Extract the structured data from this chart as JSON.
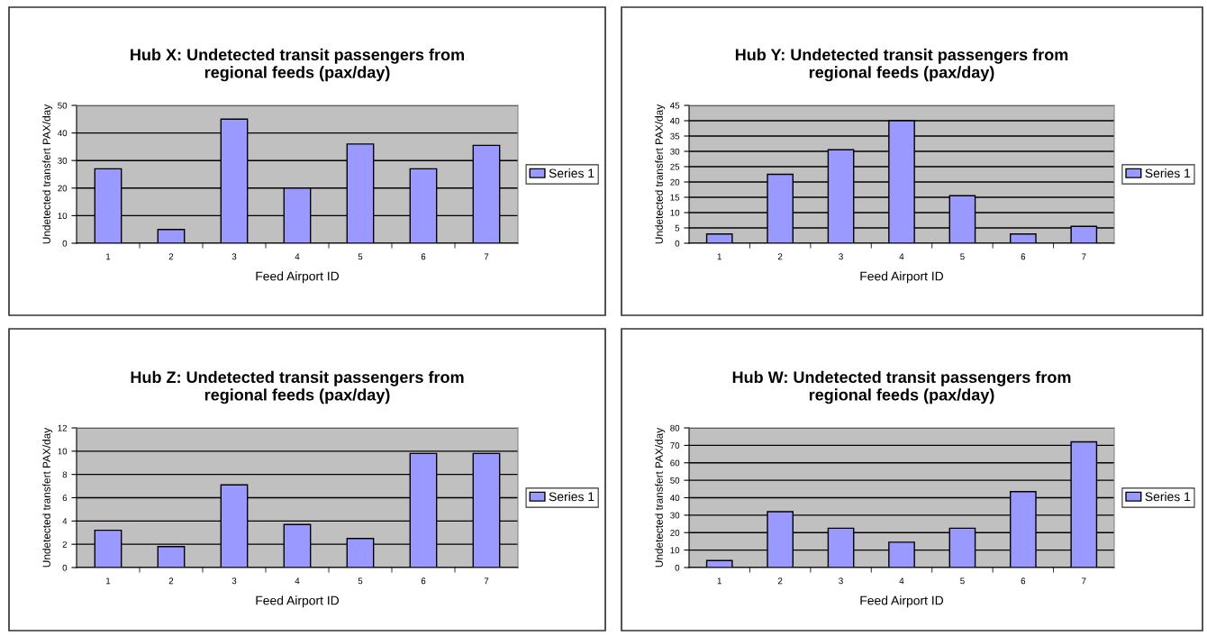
{
  "chart_data": [
    {
      "type": "bar",
      "title": "Hub X: Undetected transit passengers from\nregional feeds (pax/day)",
      "xlabel": "Feed Airport ID",
      "ylabel": "Undetected transfert PAX/day",
      "categories": [
        "1",
        "2",
        "3",
        "4",
        "5",
        "6",
        "7"
      ],
      "series": [
        {
          "name": "Series 1",
          "color": "#9999ff",
          "values": [
            27,
            5,
            45,
            20,
            36,
            27,
            35.5
          ]
        }
      ],
      "ylim": [
        0,
        50
      ],
      "yticks": [
        0,
        10,
        20,
        30,
        40,
        50
      ],
      "grid": "y",
      "legend": "right"
    },
    {
      "type": "bar",
      "title": "Hub Y: Undetected transit passengers from\nregional feeds (pax/day)",
      "xlabel": "Feed Airport ID",
      "ylabel": "Undetected transfert PAX/day",
      "categories": [
        "1",
        "2",
        "3",
        "4",
        "5",
        "6",
        "7"
      ],
      "series": [
        {
          "name": "Series 1",
          "color": "#9999ff",
          "values": [
            3,
            22.5,
            30.5,
            40,
            15.5,
            3,
            5.5
          ]
        }
      ],
      "ylim": [
        0,
        45
      ],
      "yticks": [
        0,
        5,
        10,
        15,
        20,
        25,
        30,
        35,
        40,
        45
      ],
      "grid": "y",
      "legend": "right"
    },
    {
      "type": "bar",
      "title": "Hub Z: Undetected transit passengers from\nregional feeds (pax/day)",
      "xlabel": "Feed Airport ID",
      "ylabel": "Undetected transfert PAX/day",
      "categories": [
        "1",
        "2",
        "3",
        "4",
        "5",
        "6",
        "7"
      ],
      "series": [
        {
          "name": "Series 1",
          "color": "#9999ff",
          "values": [
            3.2,
            1.8,
            7.1,
            3.7,
            2.5,
            9.8,
            9.8
          ]
        }
      ],
      "ylim": [
        0,
        12
      ],
      "yticks": [
        0,
        2,
        4,
        6,
        8,
        10,
        12
      ],
      "grid": "y",
      "legend": "right"
    },
    {
      "type": "bar",
      "title": "Hub W: Undetected transit passengers from\nregional feeds (pax/day)",
      "xlabel": "Feed Airport ID",
      "ylabel": "Undetected transfert PAX/day",
      "categories": [
        "1",
        "2",
        "3",
        "4",
        "5",
        "6",
        "7"
      ],
      "series": [
        {
          "name": "Series 1",
          "color": "#9999ff",
          "values": [
            4,
            32,
            22.5,
            14.5,
            22.5,
            43.5,
            72
          ]
        }
      ],
      "ylim": [
        0,
        80
      ],
      "yticks": [
        0,
        10,
        20,
        30,
        40,
        50,
        60,
        70,
        80
      ],
      "grid": "y",
      "legend": "right"
    }
  ]
}
